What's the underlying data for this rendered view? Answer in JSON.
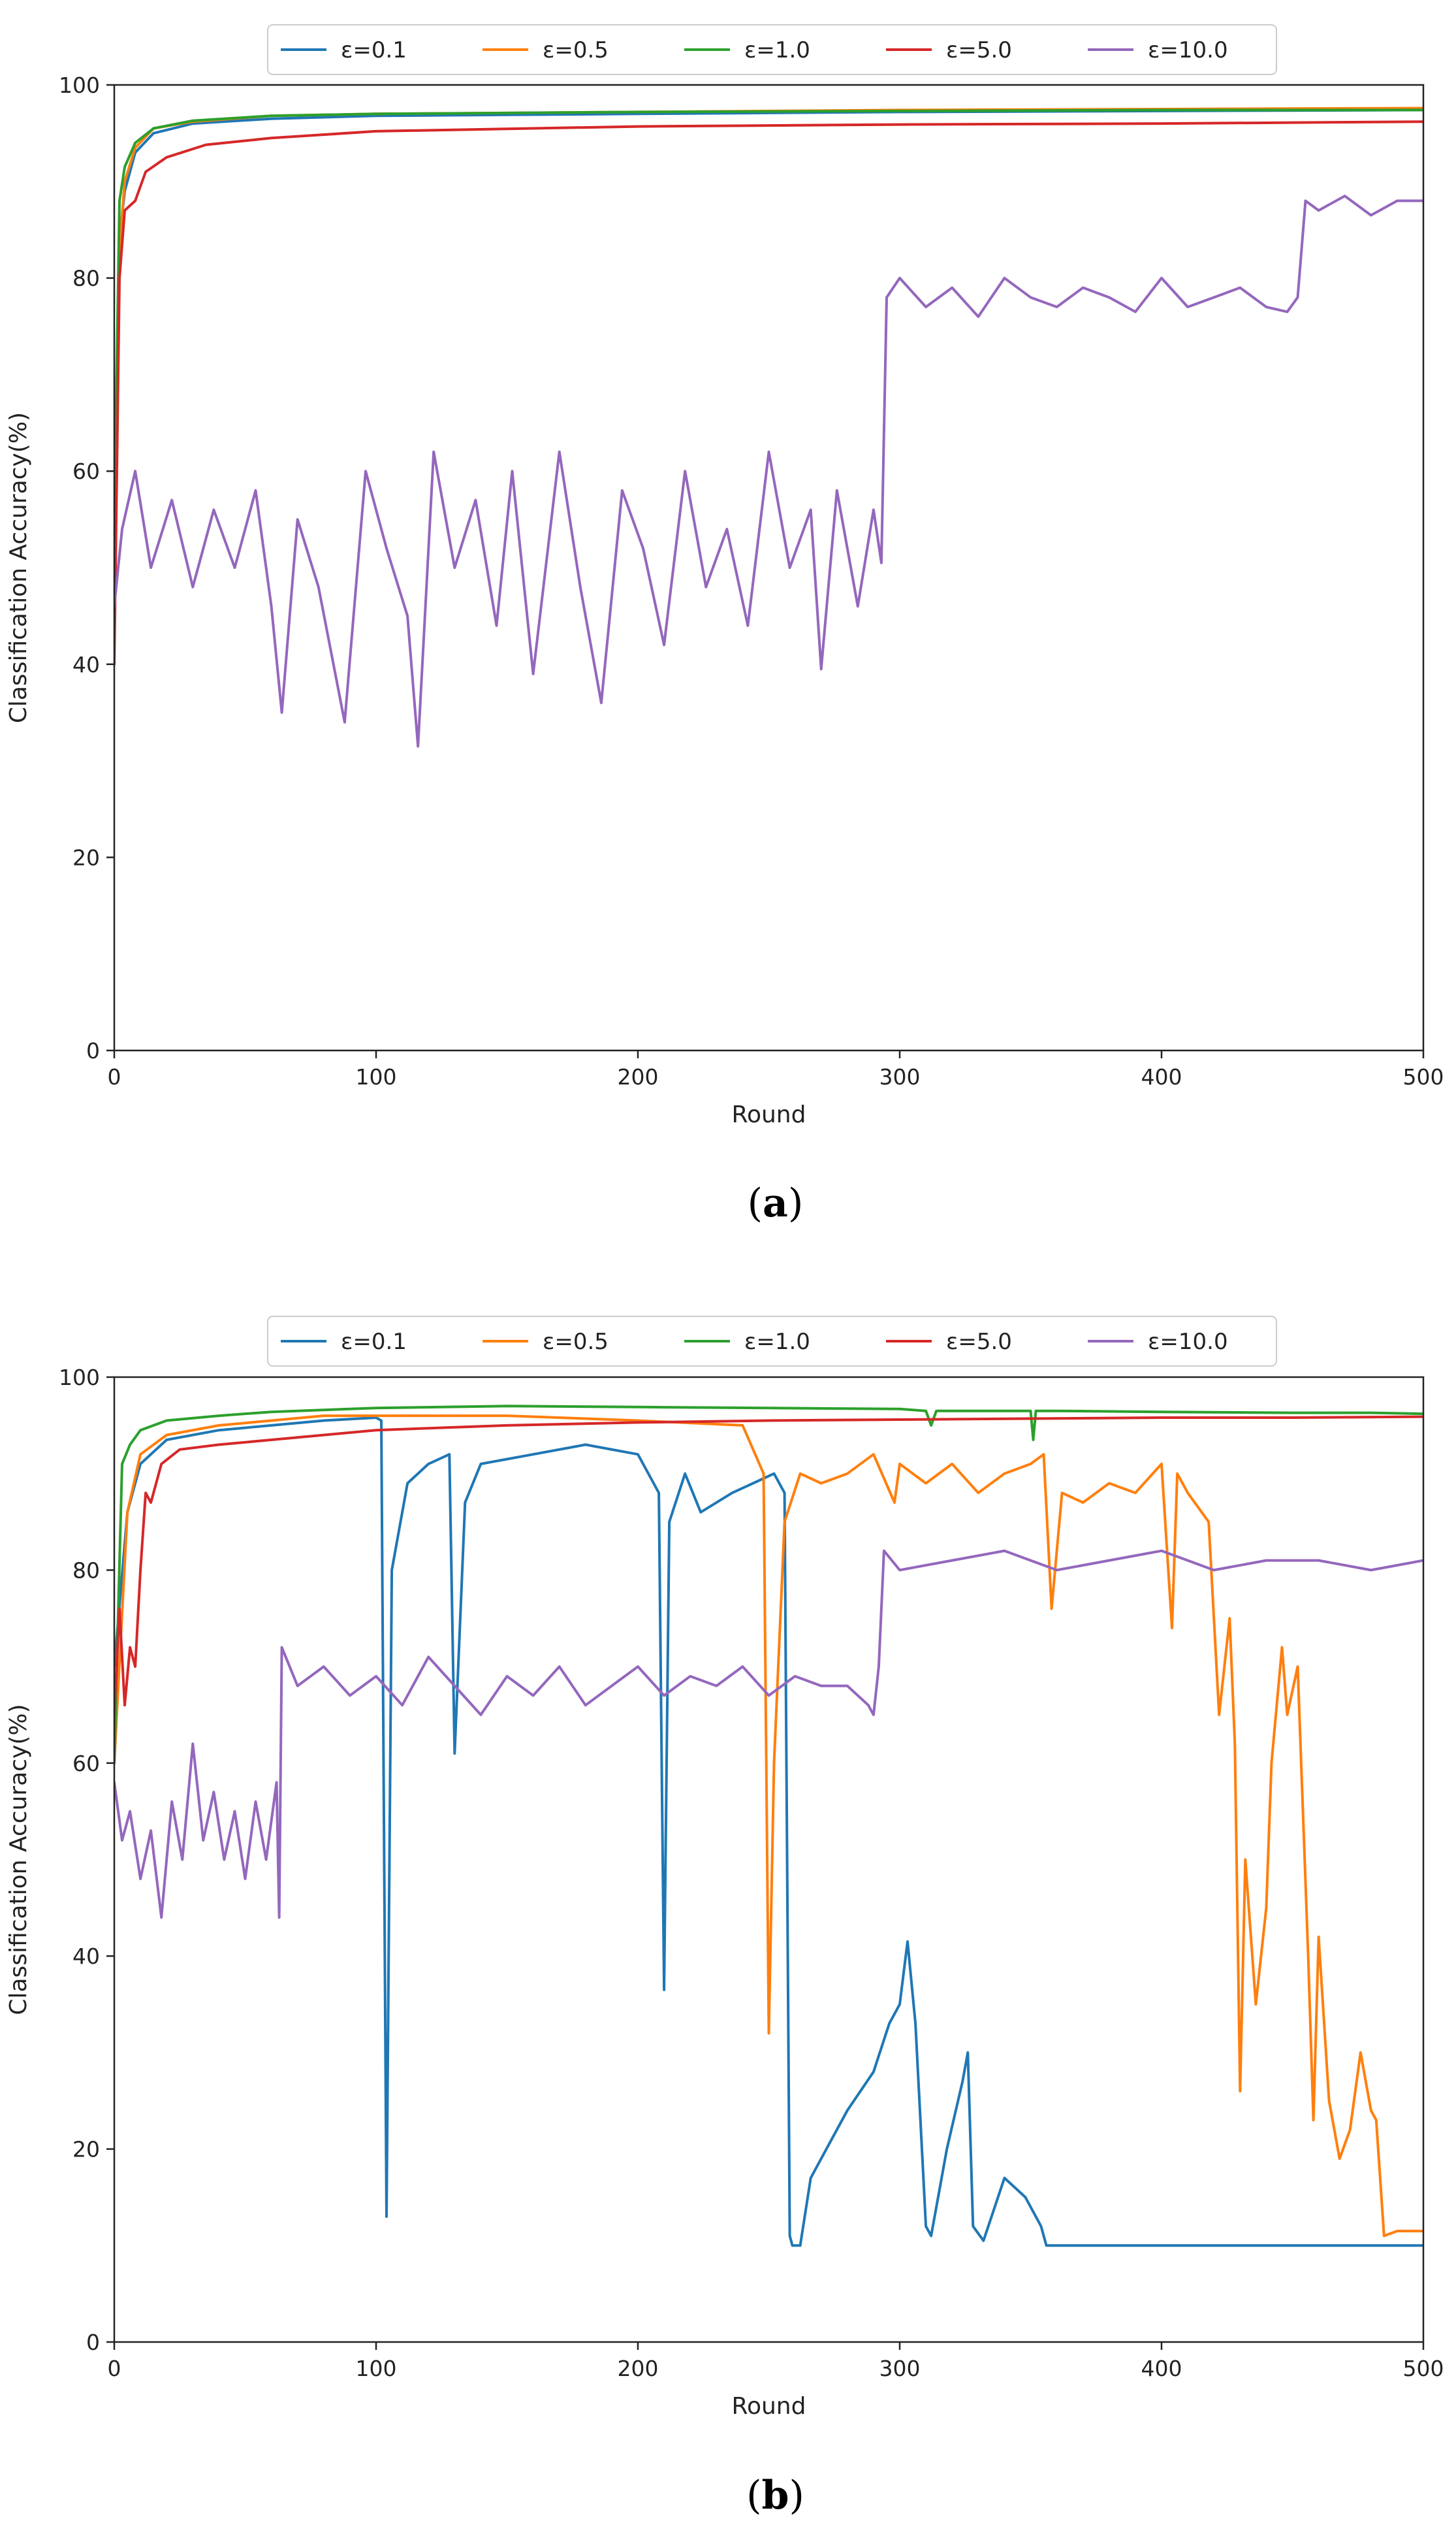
{
  "colors": {
    "eps_0_1": "#1f77b4",
    "eps_0_5": "#ff7f0e",
    "eps_1_0": "#2ca02c",
    "eps_5_0": "#d62728",
    "eps_10_0": "#9467bd"
  },
  "chart_data": [
    {
      "type": "line",
      "caption": "(a)",
      "caption_letter": "a",
      "title": "",
      "xlabel": "Round",
      "ylabel": "Classification Accuracy(%)",
      "xlim": [
        0,
        500
      ],
      "ylim": [
        0,
        100
      ],
      "x_ticks": [
        "0",
        "100",
        "200",
        "300",
        "400",
        "500"
      ],
      "y_ticks": [
        "0",
        "20",
        "40",
        "60",
        "80",
        "100"
      ],
      "legend_position": "top-center, outside",
      "series": [
        {
          "name": "ε=0.1",
          "color_key": "eps_0_1",
          "x": [
            0,
            2,
            4,
            8,
            15,
            30,
            60,
            100,
            200,
            300,
            400,
            500
          ],
          "values": [
            50,
            84,
            89,
            93,
            95,
            96,
            96.5,
            96.8,
            97,
            97.2,
            97.3,
            97.4
          ]
        },
        {
          "name": "ε=0.5",
          "color_key": "eps_0_5",
          "x": [
            0,
            2,
            4,
            8,
            15,
            30,
            60,
            100,
            200,
            300,
            400,
            500
          ],
          "values": [
            48,
            83,
            90,
            93.5,
            95.5,
            96.2,
            96.8,
            97,
            97.2,
            97.4,
            97.5,
            97.6
          ]
        },
        {
          "name": "ε=1.0",
          "color_key": "eps_1_0",
          "x": [
            0,
            2,
            4,
            8,
            15,
            30,
            60,
            100,
            200,
            300,
            400,
            500
          ],
          "values": [
            55,
            88,
            91.5,
            94,
            95.5,
            96.3,
            96.8,
            97,
            97.2,
            97.3,
            97.4,
            97.4
          ]
        },
        {
          "name": "ε=5.0",
          "color_key": "eps_5_0",
          "x": [
            0,
            2,
            4,
            8,
            12,
            20,
            35,
            60,
            100,
            200,
            300,
            400,
            500
          ],
          "values": [
            40,
            80,
            87,
            88,
            91,
            92.5,
            93.8,
            94.5,
            95.2,
            95.7,
            95.9,
            96,
            96.2
          ]
        },
        {
          "name": "ε=10.0",
          "color_key": "eps_10_0",
          "x": [
            0,
            3,
            8,
            14,
            22,
            30,
            38,
            46,
            54,
            60,
            64,
            70,
            78,
            88,
            96,
            104,
            112,
            116,
            122,
            130,
            138,
            146,
            152,
            160,
            170,
            178,
            186,
            194,
            202,
            210,
            218,
            226,
            234,
            242,
            250,
            258,
            266,
            270,
            276,
            284,
            290,
            293,
            295,
            300,
            310,
            320,
            330,
            340,
            350,
            360,
            370,
            380,
            390,
            400,
            410,
            420,
            430,
            440,
            448,
            452,
            455,
            460,
            470,
            480,
            490,
            500
          ],
          "values": [
            46,
            54,
            60,
            50,
            57,
            48,
            56,
            50,
            58,
            46,
            35,
            55,
            48,
            34,
            60,
            52,
            45,
            31.5,
            62,
            50,
            57,
            44,
            60,
            39,
            62,
            48,
            36,
            58,
            52,
            42,
            60,
            48,
            54,
            44,
            62,
            50,
            56,
            39.5,
            58,
            46,
            56,
            50.5,
            78,
            80,
            77,
            79,
            76,
            80,
            78,
            77,
            79,
            78,
            76.5,
            80,
            77,
            78,
            79,
            77,
            76.5,
            78,
            88,
            87,
            88.5,
            86.5,
            88,
            88
          ]
        }
      ]
    },
    {
      "type": "line",
      "caption": "(b)",
      "caption_letter": "b",
      "title": "",
      "xlabel": "Round",
      "ylabel": "Classification Accuracy(%)",
      "xlim": [
        0,
        500
      ],
      "ylim": [
        0,
        100
      ],
      "x_ticks": [
        "0",
        "100",
        "200",
        "300",
        "400",
        "500"
      ],
      "y_ticks": [
        "0",
        "20",
        "40",
        "60",
        "80",
        "100"
      ],
      "legend_position": "top-center, outside",
      "series": [
        {
          "name": "ε=0.1",
          "color_key": "eps_0_1",
          "x": [
            0,
            5,
            10,
            20,
            40,
            60,
            80,
            100,
            102,
            104,
            106,
            112,
            120,
            128,
            130,
            134,
            140,
            160,
            180,
            200,
            208,
            210,
            212,
            218,
            224,
            236,
            244,
            252,
            256,
            258,
            259,
            262,
            266,
            272,
            280,
            290,
            296,
            300,
            303,
            306,
            310,
            312,
            318,
            324,
            326,
            328,
            332,
            340,
            348,
            354,
            356,
            400,
            450,
            500
          ],
          "values": [
            70,
            86,
            91,
            93.5,
            94.5,
            95,
            95.5,
            95.8,
            95.5,
            13,
            80,
            89,
            91,
            92,
            61,
            87,
            91,
            92,
            93,
            92,
            88,
            36.5,
            85,
            90,
            86,
            88,
            89,
            90,
            88,
            11,
            10,
            10,
            17,
            20,
            24,
            28,
            33,
            35,
            41.5,
            33,
            12,
            11,
            20,
            27,
            30,
            12,
            10.5,
            17,
            15,
            12,
            10,
            10,
            10,
            10
          ]
        },
        {
          "name": "ε=0.5",
          "color_key": "eps_0_5",
          "x": [
            0,
            5,
            10,
            20,
            40,
            60,
            80,
            100,
            150,
            200,
            240,
            248,
            250,
            252,
            256,
            262,
            270,
            280,
            290,
            298,
            300,
            310,
            320,
            330,
            340,
            350,
            355,
            358,
            362,
            370,
            380,
            390,
            400,
            404,
            406,
            410,
            418,
            422,
            426,
            428,
            430,
            432,
            436,
            440,
            442,
            446,
            448,
            452,
            456,
            458,
            460,
            464,
            468,
            472,
            476,
            480,
            482,
            485,
            490,
            500
          ],
          "values": [
            60,
            86,
            92,
            94,
            95,
            95.5,
            96,
            96,
            96,
            95.5,
            95,
            90,
            32,
            60,
            85,
            90,
            89,
            90,
            92,
            87,
            91,
            89,
            91,
            88,
            90,
            91,
            92,
            76,
            88,
            87,
            89,
            88,
            91,
            74,
            90,
            88,
            85,
            65,
            75,
            62,
            26,
            50,
            35,
            45,
            60,
            72,
            65,
            70,
            40,
            23,
            42,
            25,
            19,
            22,
            30,
            24,
            23,
            11,
            11.5,
            11.5
          ]
        },
        {
          "name": "ε=1.0",
          "color_key": "eps_1_0",
          "x": [
            0,
            3,
            6,
            10,
            20,
            40,
            60,
            100,
            150,
            200,
            250,
            300,
            310,
            312,
            314,
            350,
            351,
            352,
            360,
            400,
            450,
            480,
            500
          ],
          "values": [
            60,
            91,
            93,
            94.5,
            95.5,
            96,
            96.4,
            96.8,
            97,
            96.9,
            96.8,
            96.7,
            96.5,
            95,
            96.5,
            96.5,
            93.5,
            96.5,
            96.5,
            96.4,
            96.3,
            96.3,
            96.2
          ]
        },
        {
          "name": "ε=5.0",
          "color_key": "eps_5_0",
          "x": [
            0,
            2,
            4,
            6,
            8,
            10,
            12,
            14,
            18,
            25,
            40,
            60,
            80,
            100,
            150,
            200,
            250,
            300,
            350,
            400,
            450,
            500
          ],
          "values": [
            65,
            76,
            66,
            72,
            70,
            80,
            88,
            87,
            91,
            92.5,
            93,
            93.5,
            94,
            94.5,
            95,
            95.3,
            95.5,
            95.6,
            95.7,
            95.8,
            95.8,
            95.9
          ]
        },
        {
          "name": "ε=10.0",
          "color_key": "eps_10_0",
          "x": [
            0,
            3,
            6,
            10,
            14,
            18,
            22,
            26,
            30,
            34,
            38,
            42,
            46,
            50,
            54,
            58,
            62,
            63,
            64,
            70,
            80,
            90,
            100,
            110,
            120,
            130,
            140,
            150,
            160,
            170,
            180,
            190,
            200,
            210,
            220,
            230,
            240,
            250,
            260,
            270,
            280,
            288,
            290,
            292,
            294,
            300,
            320,
            340,
            360,
            380,
            400,
            420,
            440,
            460,
            480,
            500
          ],
          "values": [
            58,
            52,
            55,
            48,
            53,
            44,
            56,
            50,
            62,
            52,
            57,
            50,
            55,
            48,
            56,
            50,
            58,
            44,
            72,
            68,
            70,
            67,
            69,
            66,
            71,
            68,
            65,
            69,
            67,
            70,
            66,
            68,
            70,
            67,
            69,
            68,
            70,
            67,
            69,
            68,
            68,
            66,
            65,
            70,
            82,
            80,
            81,
            82,
            80,
            81,
            82,
            80,
            81,
            81,
            80,
            81
          ]
        }
      ]
    }
  ]
}
